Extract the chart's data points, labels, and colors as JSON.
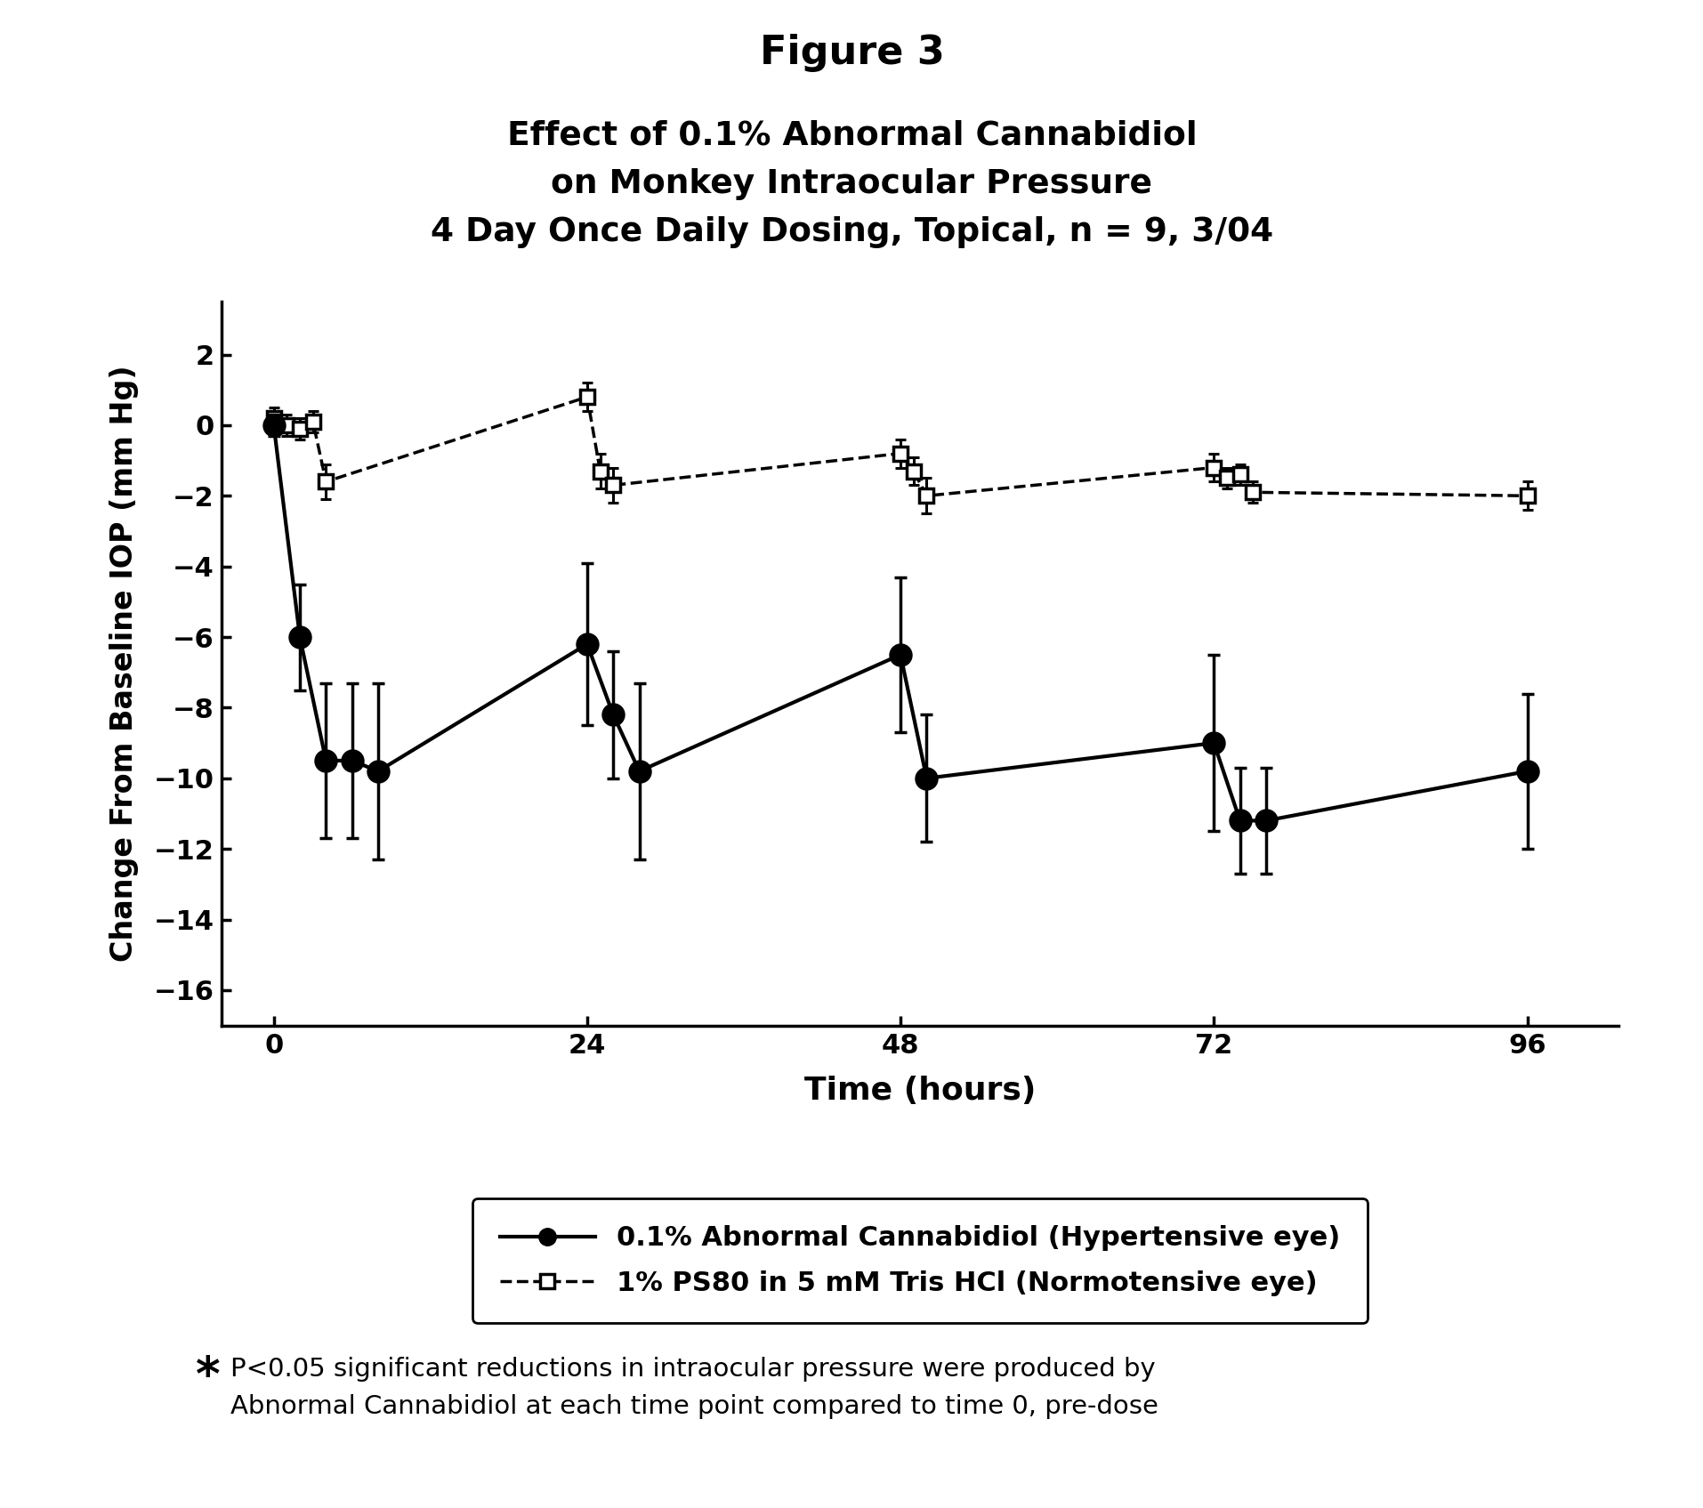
{
  "title": "Figure 3",
  "subtitle_line1": "Effect of 0.1% Abnormal Cannabidiol",
  "subtitle_line2": "on Monkey Intraocular Pressure",
  "subtitle_line3": "4 Day Once Daily Dosing, Topical, n = 9, 3/04",
  "xlabel": "Time (hours)",
  "ylabel": "Change From Baseline IOP (mm Hg)",
  "footnote_text1": "P<0.05 significant reductions in intraocular pressure were produced by",
  "footnote_text2": "Abnormal Cannabidiol at each time point compared to time 0, pre-dose",
  "legend_line1": "0.1% Abnormal Cannabidiol (Hypertensive eye)",
  "legend_line2": "1% PS80 in 5 mM Tris HCl (Normotensive eye)",
  "xlim": [
    -4,
    103
  ],
  "ylim": [
    -17,
    3.5
  ],
  "yticks": [
    2,
    0,
    -2,
    -4,
    -6,
    -8,
    -10,
    -12,
    -14,
    -16
  ],
  "xticks": [
    0,
    24,
    48,
    72,
    96
  ],
  "solid_x": [
    0,
    2,
    4,
    6,
    8,
    24,
    26,
    28,
    48,
    50,
    72,
    74,
    76,
    96
  ],
  "solid_y": [
    0.0,
    -6.0,
    -9.5,
    -9.5,
    -9.8,
    -6.2,
    -8.2,
    -9.8,
    -6.5,
    -10.0,
    -9.0,
    -11.2,
    -11.2,
    -9.8
  ],
  "solid_yerr": [
    0.3,
    1.5,
    2.2,
    2.2,
    2.5,
    2.3,
    1.8,
    2.5,
    2.2,
    1.8,
    2.5,
    1.5,
    1.5,
    2.2
  ],
  "dashed_x": [
    0,
    1,
    2,
    3,
    4,
    24,
    25,
    26,
    48,
    49,
    50,
    72,
    73,
    74,
    75,
    96
  ],
  "dashed_y": [
    0.2,
    0.0,
    -0.1,
    0.1,
    -1.6,
    0.8,
    -1.3,
    -1.7,
    -0.8,
    -1.3,
    -2.0,
    -1.2,
    -1.5,
    -1.4,
    -1.9,
    -2.0
  ],
  "dashed_yerr": [
    0.3,
    0.3,
    0.3,
    0.3,
    0.5,
    0.4,
    0.5,
    0.5,
    0.4,
    0.4,
    0.5,
    0.4,
    0.3,
    0.3,
    0.3,
    0.4
  ],
  "bg_color": "#ffffff",
  "line_color": "#000000"
}
